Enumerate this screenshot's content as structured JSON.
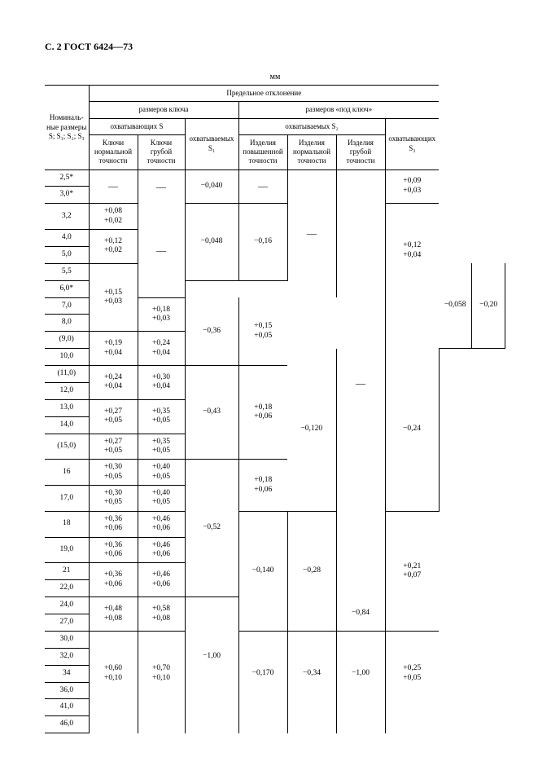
{
  "header": "С. 2 ГОСТ 6424—73",
  "unit": "мм",
  "heads": {
    "nom": "Номиналь­ные размеры S; S₁; S₂; S₃",
    "pred": "Предельное отклонение",
    "rk": "размеров ключа",
    "rpk": "размеров «под ключ»",
    "ohvS": "охватывающих S",
    "ohvyS1": "охватываемых S₁",
    "ohvyS2": "охватываемых S₂",
    "ohvS3": "охватывающих S₃",
    "knt": "Ключи нормальной точности",
    "kgt": "Ключи грубой точности",
    "ipt": "Изделия повышенной точности",
    "int": "Изделия нормальной точности",
    "igt": "Изделия грубой точности"
  },
  "nom": [
    "2,5*",
    "3,0*",
    "3,2",
    "4,0",
    "5,0",
    "5,5",
    "6,0*",
    "7,0",
    "8,0",
    "(9,0)",
    "10,0",
    "(11,0)",
    "12,0",
    "13,0",
    "14,0",
    "(15,0)",
    "16",
    "17,0",
    "18",
    "19,0",
    "21",
    "22,0",
    "24,0",
    "27,0",
    "30,0",
    "32,0",
    "34",
    "36,0",
    "41,0",
    "46,0"
  ],
  "knt": {
    "g1": "—",
    "g2": {
      "u": "+0,08",
      "l": "+0,02"
    },
    "g3": {
      "u": "+0,12",
      "l": "+0,02"
    },
    "g4": {
      "u": "+0,15",
      "l": "+0,03"
    },
    "g5": {
      "u": "+0,19",
      "l": "+0,04"
    },
    "g6": {
      "u": "+0,24",
      "l": "+0,04"
    },
    "g7": {
      "u": "+0,27",
      "l": "+0,05"
    },
    "g8": {
      "u": "+0,27",
      "l": "+0,05"
    },
    "g9": {
      "u": "+0,30",
      "l": "+0,05"
    },
    "g10": {
      "u": "+0,30",
      "l": "+0,05"
    },
    "g11": {
      "u": "+0,36",
      "l": "+0,06"
    },
    "g12": {
      "u": "+0,36",
      "l": "+0,06"
    },
    "g13": {
      "u": "+0,36",
      "l": "+0,06"
    },
    "g14": {
      "u": "+0,48",
      "l": "+0,08"
    },
    "g15": {
      "u": "+0,60",
      "l": "+0,10"
    }
  },
  "kgt": {
    "g1": "—",
    "g2": "—",
    "g3": {
      "u": "+0,18",
      "l": "+0,03"
    },
    "g4": {
      "u": "+0,24",
      "l": "+0,04"
    },
    "g5": {
      "u": "+0,30",
      "l": "+0,04"
    },
    "g6": {
      "u": "+0,35",
      "l": "+0,05"
    },
    "g7": {
      "u": "+0,35",
      "l": "+0,05"
    },
    "g8": {
      "u": "+0,40",
      "l": "+0,05"
    },
    "g9": {
      "u": "+0,40",
      "l": "+0,05"
    },
    "g10": {
      "u": "+0,46",
      "l": "+0,06"
    },
    "g11": {
      "u": "+0,46",
      "l": "+0,06"
    },
    "g12": {
      "u": "+0,46",
      "l": "+0,06"
    },
    "g13": {
      "u": "+0,58",
      "l": "+0,08"
    },
    "g14": {
      "u": "+0,70",
      "l": "+0,10"
    }
  },
  "s1": {
    "g1": "−0,040",
    "g2": "−0,048",
    "g3": "−0,058",
    "g4": "−0,120",
    "g5": "−0,140",
    "g6": "−0,170"
  },
  "ipt": {
    "g1": "—",
    "g2": "−0,16",
    "g3": "−0,20",
    "g4": "−0,24",
    "g5": "−0,28",
    "g6": "−0,34"
  },
  "int_": {
    "g1": "—",
    "g2": "−0,36",
    "g3": "−0,43",
    "g4": "−0,52",
    "g5": "−1,00"
  },
  "igt": {
    "g1": "—",
    "g2": "−0,84",
    "g3": "−1,00"
  },
  "s3": {
    "g1": {
      "u": "+0,09",
      "l": "+0,03"
    },
    "g2": {
      "u": "+0,12",
      "l": "+0,04"
    },
    "g3": {
      "u": "+0,15",
      "l": "+0,05"
    },
    "g4": {
      "u": "+0,18",
      "l": "+0,06"
    },
    "g5": {
      "u": "+0,18",
      "l": "+0,06"
    },
    "g6": {
      "u": "+0,21",
      "l": "+0,07"
    },
    "g7": {
      "u": "+0,25",
      "l": "+0,05"
    }
  }
}
